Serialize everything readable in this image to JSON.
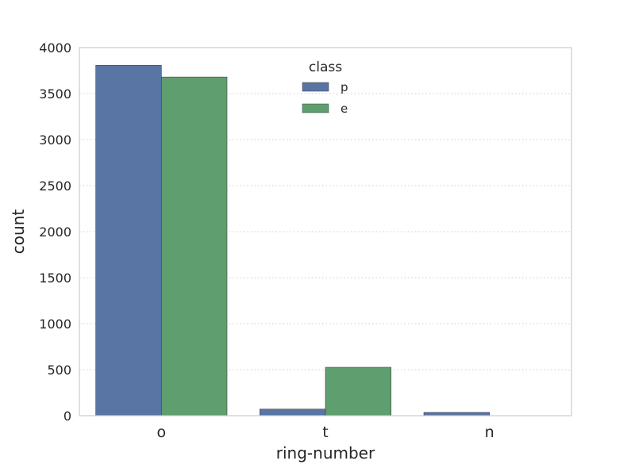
{
  "chart_data": {
    "type": "bar",
    "title": "",
    "xlabel": "ring-number",
    "ylabel": "count",
    "categories": [
      "o",
      "t",
      "n"
    ],
    "ylim": [
      0,
      4000
    ],
    "yticks": [
      "0",
      "500",
      "1000",
      "1500",
      "2000",
      "2500",
      "3000",
      "3500",
      "4000"
    ],
    "grid": "horizontal dotted",
    "legend": {
      "title": "class",
      "placement": "top-center"
    },
    "series": [
      {
        "name": "p",
        "color": "#5875a4",
        "values": [
          3808,
          72,
          36
        ]
      },
      {
        "name": "e",
        "color": "#5f9e6e",
        "values": [
          3680,
          526,
          0
        ]
      }
    ]
  }
}
